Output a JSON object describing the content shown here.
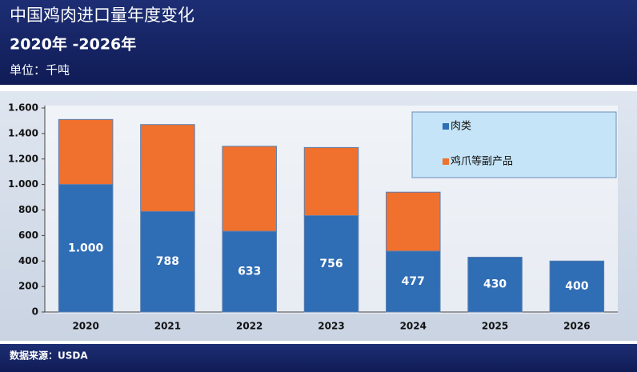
{
  "chart_data": {
    "type": "stacked-bar",
    "title": "中国鸡肉进口量年度变化",
    "subtitle": "2020年 -2026年",
    "unit": "单位：千吨",
    "source": "数据来源：USDA",
    "categories": [
      "2020",
      "2021",
      "2022",
      "2023",
      "2024",
      "2025",
      "2026"
    ],
    "series": [
      {
        "name": "肉类",
        "color": "#2f6db5",
        "values": [
          1000,
          788,
          633,
          756,
          477,
          430,
          400
        ],
        "value_labels": [
          "1.000",
          "788",
          "633",
          "756",
          "477",
          "430",
          "400"
        ]
      },
      {
        "name": "鸡爪等副产品",
        "color": "#f0712e",
        "values": [
          510,
          682,
          667,
          534,
          463,
          null,
          null
        ]
      }
    ],
    "ylim": [
      0,
      1600
    ],
    "yticks": [
      0,
      200,
      400,
      600,
      800,
      {
        "value": 1000,
        "label": "1.000"
      },
      {
        "value": 1200,
        "label": "1.200"
      },
      {
        "value": 1400,
        "label": "1.400"
      },
      {
        "value": 1600,
        "label": "1.600"
      }
    ],
    "grid": false,
    "legend": "top-right"
  }
}
